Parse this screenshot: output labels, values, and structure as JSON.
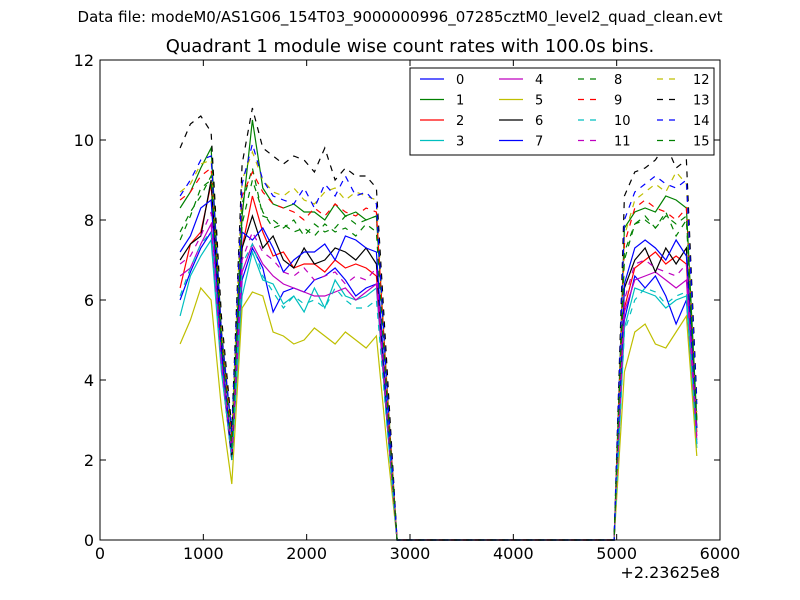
{
  "header": {
    "suptitle": "Data file: modeM0/AS1G06_154T03_9000000996_07285cztM0_level2_quad_clean.evt"
  },
  "chart_data": {
    "type": "line",
    "title": "Quadrant 1 module wise count rates with 100.0s bins.",
    "xlabel": "",
    "ylabel": "",
    "xlim": [
      0,
      6000
    ],
    "ylim": [
      0,
      12
    ],
    "x_offset_label": "+2.23625e8",
    "xticks": [
      0,
      1000,
      2000,
      3000,
      4000,
      5000,
      6000
    ],
    "xtick_labels": [
      "0",
      "1000",
      "2000",
      "3000",
      "4000",
      "5000",
      "6000"
    ],
    "yticks": [
      0,
      2,
      4,
      6,
      8,
      10,
      12
    ],
    "ytick_labels": [
      "0",
      "2",
      "4",
      "6",
      "8",
      "10",
      "12"
    ],
    "grid": false,
    "legend_position": "top-right",
    "legend_columns": 4,
    "x": [
      775,
      875,
      975,
      1075,
      1175,
      1275,
      1375,
      1475,
      1575,
      1675,
      1775,
      1875,
      1975,
      2075,
      2175,
      2275,
      2375,
      2475,
      2575,
      2675,
      2775,
      2875,
      2975,
      3075,
      3175,
      3275,
      3375,
      3475,
      3575,
      3675,
      3775,
      3875,
      3975,
      4075,
      4175,
      4275,
      4375,
      4475,
      4575,
      4675,
      4775,
      4875,
      4975,
      5075,
      5175,
      5275,
      5375,
      5475,
      5575,
      5675,
      5775
    ],
    "series": [
      {
        "name": "0",
        "color": "#0000ff",
        "dash": "solid",
        "values": [
          6.0,
          6.7,
          7.3,
          7.7,
          4.3,
          2.0,
          6.5,
          7.3,
          6.8,
          5.7,
          6.2,
          6.3,
          6.2,
          6.5,
          6.6,
          6.8,
          6.5,
          6.1,
          6.3,
          6.4,
          3.0,
          0,
          0,
          0,
          0,
          0,
          0,
          0,
          0,
          0,
          0,
          0,
          0,
          0,
          0,
          0,
          0,
          0,
          0,
          0,
          0,
          0,
          0,
          5.5,
          6.6,
          6.3,
          6.6,
          6.1,
          5.4,
          6.0,
          2.4
        ]
      },
      {
        "name": "1",
        "color": "#008000",
        "dash": "solid",
        "values": [
          8.3,
          8.7,
          9.3,
          9.8,
          5.2,
          2.6,
          8.1,
          10.5,
          8.8,
          8.4,
          8.3,
          8.4,
          8.2,
          8.2,
          8.0,
          8.4,
          8.1,
          8.2,
          8.0,
          8.1,
          3.9,
          0,
          0,
          0,
          0,
          0,
          0,
          0,
          0,
          0,
          0,
          0,
          0,
          0,
          0,
          0,
          0,
          0,
          0,
          0,
          0,
          0,
          0,
          7.8,
          8.2,
          8.3,
          8.2,
          8.6,
          8.5,
          8.3,
          3.0
        ]
      },
      {
        "name": "2",
        "color": "#ff0000",
        "dash": "solid",
        "values": [
          6.3,
          7.4,
          7.7,
          8.9,
          4.8,
          2.2,
          7.3,
          8.6,
          7.7,
          7.1,
          7.2,
          6.8,
          6.9,
          6.9,
          6.7,
          7.0,
          6.8,
          6.9,
          6.8,
          6.6,
          3.2,
          0,
          0,
          0,
          0,
          0,
          0,
          0,
          0,
          0,
          0,
          0,
          0,
          0,
          0,
          0,
          0,
          0,
          0,
          0,
          0,
          0,
          0,
          5.8,
          6.8,
          7.0,
          7.2,
          6.9,
          7.1,
          6.9,
          2.7
        ]
      },
      {
        "name": "3",
        "color": "#00bfbf",
        "dash": "solid",
        "values": [
          5.6,
          6.6,
          7.1,
          7.5,
          4.2,
          2.1,
          6.1,
          7.2,
          6.5,
          6.4,
          5.9,
          6.1,
          5.7,
          6.3,
          5.8,
          6.5,
          6.1,
          6.0,
          6.1,
          6.3,
          3.0,
          0,
          0,
          0,
          0,
          0,
          0,
          0,
          0,
          0,
          0,
          0,
          0,
          0,
          0,
          0,
          0,
          0,
          0,
          0,
          0,
          0,
          0,
          5.3,
          6.3,
          6.2,
          6.1,
          5.8,
          6.0,
          6.1,
          2.3
        ]
      },
      {
        "name": "4",
        "color": "#bf00bf",
        "dash": "solid",
        "values": [
          6.6,
          6.8,
          7.4,
          7.9,
          4.4,
          2.1,
          6.7,
          7.4,
          6.9,
          6.6,
          6.4,
          6.3,
          6.2,
          6.1,
          6.1,
          6.2,
          6.3,
          6.0,
          6.2,
          6.4,
          3.1,
          0,
          0,
          0,
          0,
          0,
          0,
          0,
          0,
          0,
          0,
          0,
          0,
          0,
          0,
          0,
          0,
          0,
          0,
          0,
          0,
          0,
          0,
          5.7,
          6.5,
          6.6,
          6.7,
          6.5,
          6.3,
          6.5,
          2.5
        ]
      },
      {
        "name": "5",
        "color": "#bfbf00",
        "dash": "solid",
        "values": [
          4.9,
          5.5,
          6.3,
          6.0,
          3.3,
          1.4,
          5.8,
          6.2,
          6.1,
          5.2,
          5.1,
          4.9,
          5.0,
          5.3,
          5.1,
          4.9,
          5.2,
          5.0,
          4.8,
          5.1,
          2.4,
          0,
          0,
          0,
          0,
          0,
          0,
          0,
          0,
          0,
          0,
          0,
          0,
          0,
          0,
          0,
          0,
          0,
          0,
          0,
          0,
          0,
          0,
          4.2,
          5.2,
          5.4,
          4.9,
          4.8,
          5.2,
          5.6,
          2.1
        ]
      },
      {
        "name": "6",
        "color": "#000000",
        "dash": "solid",
        "values": [
          7.0,
          7.4,
          7.6,
          9.0,
          4.9,
          2.0,
          7.3,
          8.1,
          7.3,
          7.6,
          7.0,
          6.8,
          7.3,
          6.9,
          7.0,
          7.3,
          7.2,
          7.0,
          7.3,
          6.9,
          3.2,
          0,
          0,
          0,
          0,
          0,
          0,
          0,
          0,
          0,
          0,
          0,
          0,
          0,
          0,
          0,
          0,
          0,
          0,
          0,
          0,
          0,
          0,
          6.3,
          7.0,
          7.3,
          6.7,
          7.3,
          6.9,
          7.3,
          2.8
        ]
      },
      {
        "name": "7",
        "color": "#0000ff",
        "dash": "solid",
        "values": [
          7.2,
          7.6,
          8.3,
          8.5,
          4.7,
          2.2,
          7.7,
          7.5,
          7.8,
          7.3,
          6.7,
          7.0,
          7.2,
          7.2,
          7.4,
          7.0,
          7.6,
          7.5,
          7.3,
          7.2,
          3.3,
          0,
          0,
          0,
          0,
          0,
          0,
          0,
          0,
          0,
          0,
          0,
          0,
          0,
          0,
          0,
          0,
          0,
          0,
          0,
          0,
          0,
          0,
          6.4,
          7.3,
          7.5,
          7.3,
          7.0,
          7.5,
          7.1,
          2.8
        ]
      },
      {
        "name": "8",
        "color": "#008000",
        "dash": "dashed",
        "values": [
          7.5,
          8.1,
          8.8,
          9.0,
          5.0,
          2.4,
          8.4,
          9.3,
          8.1,
          8.0,
          7.8,
          8.0,
          7.6,
          7.9,
          7.7,
          7.8,
          8.1,
          7.9,
          8.0,
          8.1,
          3.7,
          0,
          0,
          0,
          0,
          0,
          0,
          0,
          0,
          0,
          0,
          0,
          0,
          0,
          0,
          0,
          0,
          0,
          0,
          0,
          0,
          0,
          0,
          7.0,
          7.9,
          8.1,
          7.8,
          8.2,
          7.6,
          8.0,
          2.9
        ]
      },
      {
        "name": "9",
        "color": "#ff0000",
        "dash": "dashed",
        "values": [
          8.5,
          8.7,
          9.1,
          9.3,
          5.1,
          2.6,
          8.6,
          9.2,
          8.7,
          8.4,
          8.3,
          8.2,
          8.0,
          8.3,
          8.1,
          8.4,
          8.2,
          8.1,
          8.3,
          8.2,
          3.8,
          0,
          0,
          0,
          0,
          0,
          0,
          0,
          0,
          0,
          0,
          0,
          0,
          0,
          0,
          0,
          0,
          0,
          0,
          0,
          0,
          0,
          0,
          7.4,
          8.3,
          8.5,
          8.3,
          8.2,
          8.0,
          8.3,
          3.0
        ]
      },
      {
        "name": "10",
        "color": "#00bfbf",
        "dash": "dashed",
        "values": [
          6.1,
          6.8,
          7.4,
          7.7,
          4.3,
          2.0,
          6.9,
          7.4,
          6.6,
          6.2,
          5.8,
          6.1,
          5.9,
          6.0,
          5.8,
          6.3,
          6.0,
          5.8,
          5.8,
          6.0,
          2.9,
          0,
          0,
          0,
          0,
          0,
          0,
          0,
          0,
          0,
          0,
          0,
          0,
          0,
          0,
          0,
          0,
          0,
          0,
          0,
          0,
          0,
          0,
          5.2,
          6.0,
          6.3,
          6.2,
          5.9,
          6.1,
          6.2,
          2.4
        ]
      },
      {
        "name": "11",
        "color": "#bf00bf",
        "dash": "dashed",
        "values": [
          6.9,
          7.1,
          7.6,
          8.2,
          4.5,
          2.2,
          7.0,
          7.7,
          7.2,
          7.0,
          6.7,
          6.6,
          6.8,
          6.5,
          6.6,
          6.7,
          6.4,
          6.6,
          6.5,
          6.8,
          3.2,
          0,
          0,
          0,
          0,
          0,
          0,
          0,
          0,
          0,
          0,
          0,
          0,
          0,
          0,
          0,
          0,
          0,
          0,
          0,
          0,
          0,
          0,
          6.0,
          6.9,
          7.0,
          6.8,
          6.7,
          6.6,
          6.9,
          2.6
        ]
      },
      {
        "name": "12",
        "color": "#bfbf00",
        "dash": "dashed",
        "values": [
          8.7,
          8.9,
          9.4,
          9.5,
          5.3,
          2.7,
          9.0,
          9.7,
          9.0,
          8.7,
          8.6,
          8.8,
          8.5,
          8.4,
          8.7,
          8.8,
          8.5,
          8.7,
          8.6,
          8.5,
          4.0,
          0,
          0,
          0,
          0,
          0,
          0,
          0,
          0,
          0,
          0,
          0,
          0,
          0,
          0,
          0,
          0,
          0,
          0,
          0,
          0,
          0,
          0,
          7.6,
          8.5,
          8.7,
          8.9,
          8.7,
          9.2,
          8.9,
          3.2
        ]
      },
      {
        "name": "13",
        "color": "#000000",
        "dash": "dashed",
        "values": [
          9.8,
          10.4,
          10.6,
          10.2,
          5.6,
          2.8,
          9.4,
          10.8,
          9.8,
          9.6,
          9.4,
          9.6,
          9.5,
          9.2,
          9.8,
          9.0,
          9.3,
          9.1,
          9.1,
          8.8,
          4.4,
          0,
          0,
          0,
          0,
          0,
          0,
          0,
          0,
          0,
          0,
          0,
          0,
          0,
          0,
          0,
          0,
          0,
          0,
          0,
          0,
          0,
          0,
          8.6,
          9.2,
          9.3,
          9.5,
          9.9,
          9.3,
          9.5,
          3.5
        ]
      },
      {
        "name": "14",
        "color": "#0000ff",
        "dash": "dashed",
        "values": [
          8.6,
          9.0,
          9.5,
          9.6,
          5.2,
          2.7,
          8.9,
          9.9,
          9.0,
          8.6,
          8.5,
          8.4,
          8.8,
          8.3,
          8.9,
          8.6,
          9.1,
          8.6,
          8.7,
          8.4,
          3.9,
          0,
          0,
          0,
          0,
          0,
          0,
          0,
          0,
          0,
          0,
          0,
          0,
          0,
          0,
          0,
          0,
          0,
          0,
          0,
          0,
          0,
          0,
          8.0,
          8.7,
          8.9,
          9.1,
          8.9,
          8.8,
          9.0,
          3.4
        ]
      },
      {
        "name": "15",
        "color": "#008000",
        "dash": "dashed",
        "values": [
          7.7,
          8.2,
          8.6,
          9.1,
          5.0,
          2.3,
          7.9,
          9.0,
          8.2,
          7.8,
          7.9,
          7.7,
          7.8,
          7.6,
          7.9,
          7.7,
          7.8,
          7.6,
          7.9,
          7.7,
          3.6,
          0,
          0,
          0,
          0,
          0,
          0,
          0,
          0,
          0,
          0,
          0,
          0,
          0,
          0,
          0,
          0,
          0,
          0,
          0,
          0,
          0,
          0,
          7.2,
          7.9,
          8.0,
          7.8,
          8.1,
          7.9,
          8.1,
          3.0
        ]
      }
    ]
  }
}
